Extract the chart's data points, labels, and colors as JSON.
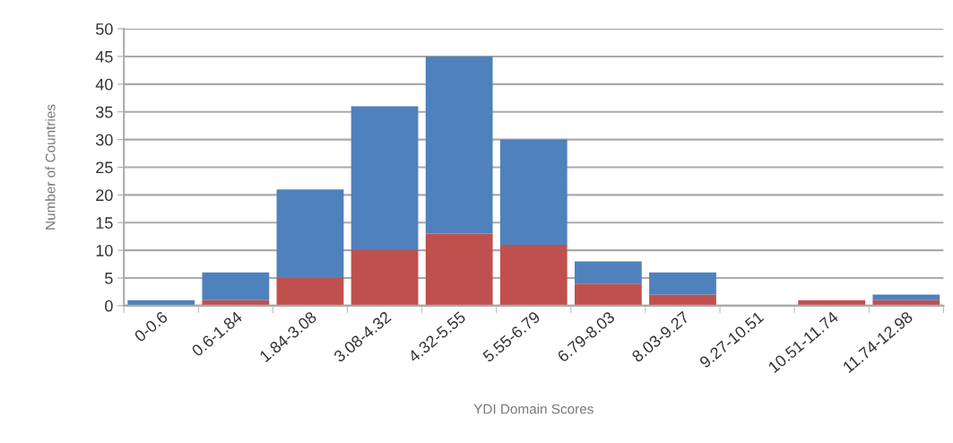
{
  "chart_data": {
    "type": "bar",
    "stacked": true,
    "xlabel": "YDI Domain Scores",
    "ylabel": "Number of Countries",
    "categories": [
      "0-0.6",
      "0.6-1.84",
      "1.84-3.08",
      "3.08-4.32",
      "4.32-5.55",
      "5.55-6.79",
      "6.79-8.03",
      "8.03-9.27",
      "9.27-10.51",
      "10.51-11.74",
      "11.74-12.98"
    ],
    "series": [
      {
        "color": "#c0504d",
        "values": [
          0,
          1,
          5,
          10,
          13,
          11,
          4,
          2,
          0,
          1,
          1
        ]
      },
      {
        "color": "#4f81bd",
        "values": [
          1,
          5,
          16,
          26,
          32,
          19,
          4,
          4,
          0,
          0,
          1
        ]
      }
    ],
    "ylim": [
      0,
      50
    ],
    "yticks": [
      0,
      5,
      10,
      15,
      20,
      25,
      30,
      35,
      40,
      45,
      50
    ],
    "grid": "y"
  }
}
